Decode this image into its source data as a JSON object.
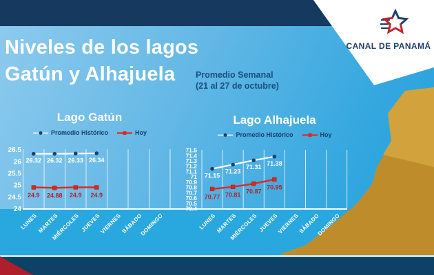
{
  "header": {
    "title_line1": "Niveles de los lagos",
    "title_line2": "Gatún y Alhajuela",
    "subtitle_line1": "Promedio Semanal",
    "subtitle_line2": "(21 al 27 de octubre)"
  },
  "logo": {
    "text": "CANAL DE PANAMÁ"
  },
  "colors": {
    "top_band": "#16395F",
    "background_blue": "#29A8E0",
    "footer_navy": "#0E4166",
    "footer_red": "#AE1E2B",
    "land_dark": "#BE8C2B",
    "land_light": "#D2A33C",
    "logo_navy": "#1C3E68",
    "logo_red": "#C1272D",
    "legend_text": "#17406B"
  },
  "chart_data": [
    {
      "type": "line",
      "title": "Lago Gatún",
      "categories": [
        "LUNES",
        "MARTES",
        "MIÉRCOLES",
        "JUEVES",
        "VIERNES",
        "SÁBADO",
        "DOMINGO"
      ],
      "ylim": [
        24,
        26.5
      ],
      "yticks": [
        "26.5",
        "26",
        "25.5",
        "25",
        "24.5",
        "24"
      ],
      "ytick_values": [
        26.5,
        26,
        25.5,
        25,
        24.5,
        24
      ],
      "grid": "vertical",
      "legend_position": "top",
      "series": [
        {
          "name": "Promedio Histórico",
          "values": [
            26.32,
            26.32,
            26.33,
            26.34
          ],
          "labels": [
            "26.32",
            "26.32",
            "26.33",
            "26.34"
          ],
          "line_color": "#FFFFFF",
          "marker": "circle",
          "marker_color": "#1E3F6E",
          "label_color": "#FFFFFF"
        },
        {
          "name": "Hoy",
          "values": [
            24.9,
            24.88,
            24.9,
            24.9
          ],
          "labels": [
            "24.9",
            "24.88",
            "24.9",
            "24.9"
          ],
          "line_color": "#E8271B",
          "marker": "square",
          "marker_color": "#E02718",
          "label_color": "#B6202A"
        }
      ]
    },
    {
      "type": "line",
      "title": "Lago Alhajuela",
      "categories": [
        "LUNES",
        "MARTES",
        "MIÉRCOLES",
        "JUEVES",
        "VIERNES",
        "SÁBADO",
        "DOMINGO"
      ],
      "ylim": [
        70.4,
        71.5
      ],
      "yticks": [
        "71.5",
        "71.4",
        "71.3",
        "71.2",
        "71.1",
        "71",
        "70.9",
        "70.8",
        "70.7",
        "70.6",
        "70.5",
        "70.4"
      ],
      "ytick_values": [
        71.5,
        71.4,
        71.3,
        71.2,
        71.1,
        71,
        70.9,
        70.8,
        70.7,
        70.6,
        70.5,
        70.4
      ],
      "grid": "vertical",
      "legend_position": "top",
      "series": [
        {
          "name": "Promedio Histórico",
          "values": [
            71.15,
            71.23,
            71.31,
            71.38
          ],
          "labels": [
            "71.15",
            "71.23",
            "71.31",
            "71.38"
          ],
          "line_color": "#FFFFFF",
          "marker": "circle",
          "marker_color": "#1E3F6E",
          "label_color": "#FFFFFF"
        },
        {
          "name": "Hoy",
          "values": [
            70.77,
            70.81,
            70.87,
            70.95
          ],
          "labels": [
            "70.77",
            "70.81",
            "70.87",
            "70.95"
          ],
          "line_color": "#E8271B",
          "marker": "square",
          "marker_color": "#E02718",
          "label_color": "#B6202A"
        }
      ]
    }
  ]
}
